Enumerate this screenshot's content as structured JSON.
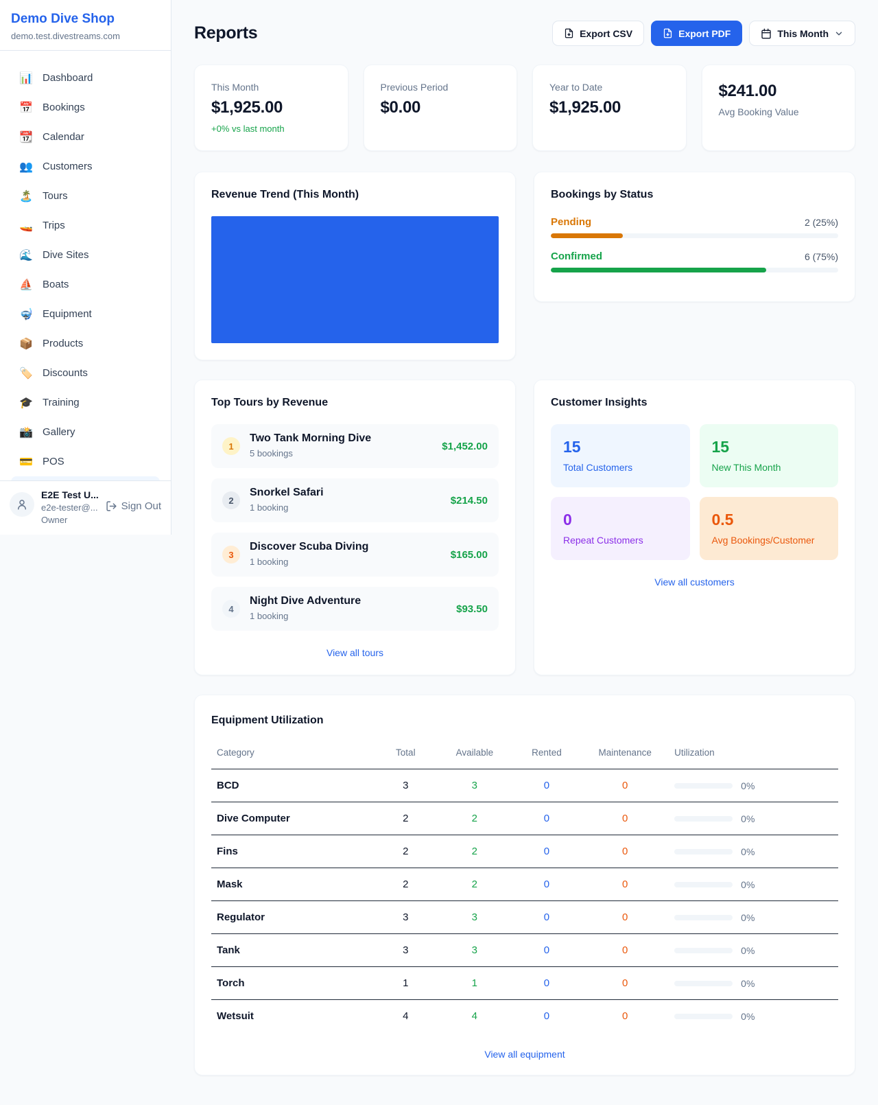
{
  "sidebar": {
    "shop_name": "Demo Dive Shop",
    "shop_domain": "demo.test.divestreams.com",
    "items": [
      {
        "icon": "📊",
        "label": "Dashboard"
      },
      {
        "icon": "📅",
        "label": "Bookings"
      },
      {
        "icon": "📆",
        "label": "Calendar"
      },
      {
        "icon": "👥",
        "label": "Customers"
      },
      {
        "icon": "🏝️",
        "label": "Tours"
      },
      {
        "icon": "🚤",
        "label": "Trips"
      },
      {
        "icon": "🌊",
        "label": "Dive Sites"
      },
      {
        "icon": "⛵",
        "label": "Boats"
      },
      {
        "icon": "🤿",
        "label": "Equipment"
      },
      {
        "icon": "📦",
        "label": "Products"
      },
      {
        "icon": "🏷️",
        "label": "Discounts"
      },
      {
        "icon": "🎓",
        "label": "Training"
      },
      {
        "icon": "📸",
        "label": "Gallery"
      },
      {
        "icon": "💳",
        "label": "POS"
      }
    ],
    "user": {
      "name": "E2E Test U...",
      "email": "e2e-tester@...",
      "role": "Owner",
      "sign_out_label": "Sign Out"
    }
  },
  "header": {
    "title": "Reports",
    "export_csv_label": "Export CSV",
    "export_pdf_label": "Export PDF",
    "period_label": "This Month"
  },
  "stats": [
    {
      "label": "This Month",
      "value": "$1,925.00",
      "delta": "+0% vs last month"
    },
    {
      "label": "Previous Period",
      "value": "$0.00"
    },
    {
      "label": "Year to Date",
      "value": "$1,925.00"
    },
    {
      "label": "Avg Booking Value",
      "value": "$241.00"
    }
  ],
  "revenue_trend": {
    "title": "Revenue Trend (This Month)",
    "bar_color": "#2563eb"
  },
  "bookings_by_status": {
    "title": "Bookings by Status",
    "items": [
      {
        "label": "Pending",
        "value": "2 (25%)",
        "pct": 25,
        "color": "#d97706"
      },
      {
        "label": "Confirmed",
        "value": "6 (75%)",
        "pct": 75,
        "color": "#16a34a"
      }
    ]
  },
  "top_tours": {
    "title": "Top Tours by Revenue",
    "rows": [
      {
        "rank": "1",
        "name": "Two Tank Morning Dive",
        "sub": "5 bookings",
        "price": "$1,452.00",
        "badge_bg": "#fef3c7",
        "badge_color": "#d97706"
      },
      {
        "rank": "2",
        "name": "Snorkel Safari",
        "sub": "1 booking",
        "price": "$214.50",
        "badge_bg": "#e8ecf1",
        "badge_color": "#475569"
      },
      {
        "rank": "3",
        "name": "Discover Scuba Diving",
        "sub": "1 booking",
        "price": "$165.00",
        "badge_bg": "#ffedd5",
        "badge_color": "#ea580c"
      },
      {
        "rank": "4",
        "name": "Night Dive Adventure",
        "sub": "1 booking",
        "price": "$93.50",
        "badge_bg": "#f1f5f9",
        "badge_color": "#64748b"
      }
    ],
    "view_all_label": "View all tours"
  },
  "customer_insights": {
    "title": "Customer Insights",
    "tiles": [
      {
        "number": "15",
        "label": "Total Customers",
        "bg": "#eff6ff",
        "color": "#2563eb"
      },
      {
        "number": "15",
        "label": "New This Month",
        "bg": "#ecfdf3",
        "color": "#16a34a"
      },
      {
        "number": "0",
        "label": "Repeat Customers",
        "bg": "#f5f0fe",
        "color": "#8b2fe8"
      },
      {
        "number": "0.5",
        "label": "Avg Bookings/Customer",
        "bg": "#fdead3",
        "color": "#ea580c"
      }
    ],
    "view_all_label": "View all customers"
  },
  "equipment": {
    "title": "Equipment Utilization",
    "columns": [
      "Category",
      "Total",
      "Available",
      "Rented",
      "Maintenance",
      "Utilization"
    ],
    "colors": {
      "available": "#16a34a",
      "rented": "#2563eb",
      "maintenance": "#ea580c"
    },
    "rows": [
      {
        "category": "BCD",
        "total": "3",
        "available": "3",
        "rented": "0",
        "maintenance": "0",
        "utilization": "0%"
      },
      {
        "category": "Dive Computer",
        "total": "2",
        "available": "2",
        "rented": "0",
        "maintenance": "0",
        "utilization": "0%"
      },
      {
        "category": "Fins",
        "total": "2",
        "available": "2",
        "rented": "0",
        "maintenance": "0",
        "utilization": "0%"
      },
      {
        "category": "Mask",
        "total": "2",
        "available": "2",
        "rented": "0",
        "maintenance": "0",
        "utilization": "0%"
      },
      {
        "category": "Regulator",
        "total": "3",
        "available": "3",
        "rented": "0",
        "maintenance": "0",
        "utilization": "0%"
      },
      {
        "category": "Tank",
        "total": "3",
        "available": "3",
        "rented": "0",
        "maintenance": "0",
        "utilization": "0%"
      },
      {
        "category": "Torch",
        "total": "1",
        "available": "1",
        "rented": "0",
        "maintenance": "0",
        "utilization": "0%"
      },
      {
        "category": "Wetsuit",
        "total": "4",
        "available": "4",
        "rented": "0",
        "maintenance": "0",
        "utilization": "0%"
      }
    ],
    "view_all_label": "View all equipment"
  }
}
